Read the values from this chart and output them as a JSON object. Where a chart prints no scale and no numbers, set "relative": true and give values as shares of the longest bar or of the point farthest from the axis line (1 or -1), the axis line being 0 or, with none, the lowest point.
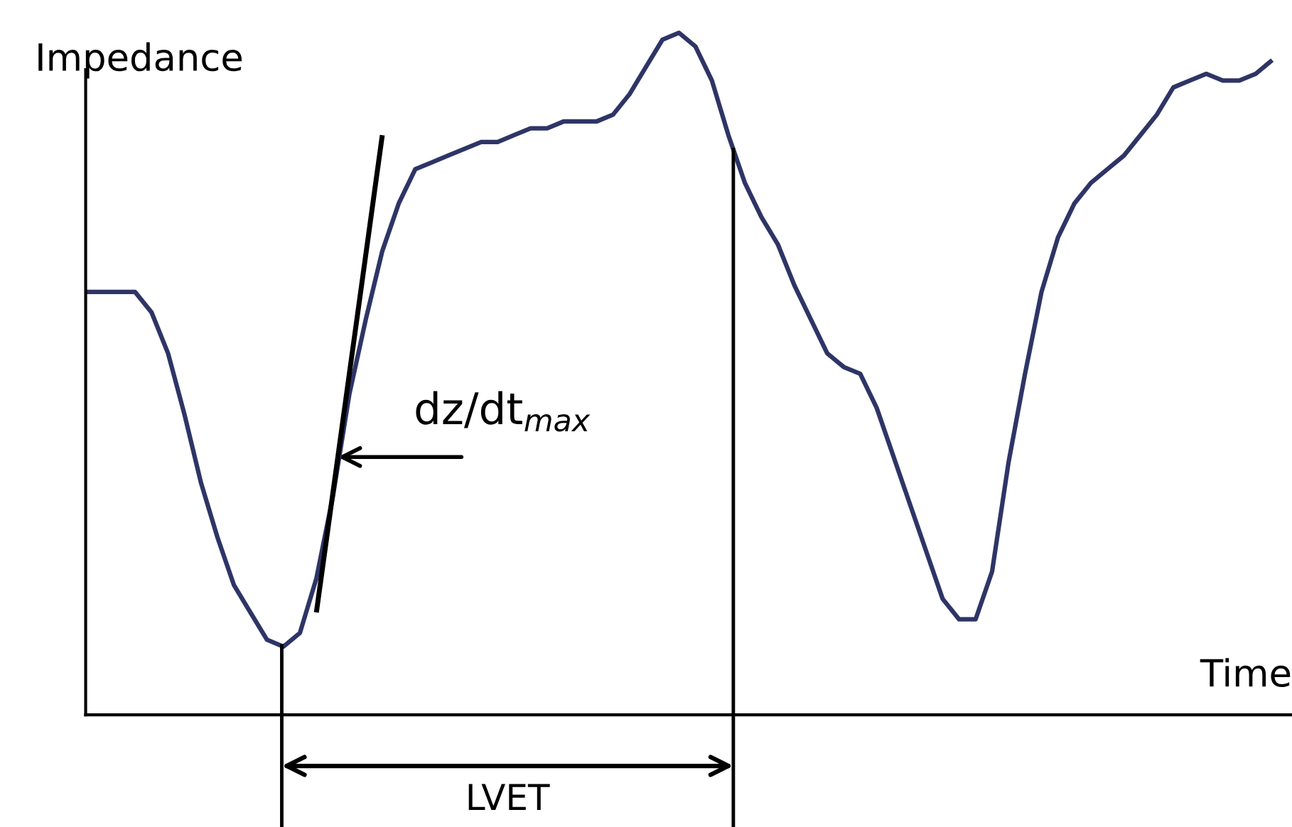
{
  "chart_data": {
    "type": "line",
    "relative": true,
    "ylabel": "Impedance",
    "xlabel": "Time",
    "categories": [
      null,
      null,
      null,
      null,
      null,
      null,
      null,
      null,
      null,
      null,
      null,
      null,
      null,
      null,
      null,
      null,
      null,
      null,
      null,
      null,
      null,
      null,
      null,
      null,
      null,
      null,
      null,
      null,
      null,
      null,
      null,
      null,
      null,
      null,
      null,
      null,
      null,
      null,
      null,
      null,
      null,
      null,
      null,
      null,
      null,
      null,
      null,
      null,
      null,
      null,
      null,
      null,
      null,
      null,
      null,
      null,
      null,
      null,
      null,
      null,
      null,
      null,
      null,
      null,
      null,
      null,
      null,
      null,
      null,
      null,
      null,
      null,
      null
    ],
    "series": [
      {
        "color": "#2e3566",
        "values": [
          0.62,
          0.62,
          0.62,
          0.62,
          0.59,
          0.53,
          0.44,
          0.34,
          0.26,
          0.19,
          0.15,
          0.11,
          0.1,
          0.12,
          0.2,
          0.32,
          0.47,
          0.58,
          0.68,
          0.75,
          0.8,
          0.81,
          0.82,
          0.83,
          0.84,
          0.84,
          0.85,
          0.86,
          0.86,
          0.87,
          0.87,
          0.87,
          0.88,
          0.91,
          0.95,
          0.99,
          1.0,
          0.98,
          0.93,
          0.85,
          0.78,
          0.73,
          0.69,
          0.63,
          0.58,
          0.53,
          0.51,
          0.5,
          0.45,
          0.38,
          0.31,
          0.24,
          0.17,
          0.14,
          0.14,
          0.21,
          0.37,
          0.5,
          0.62,
          0.7,
          0.75,
          0.78,
          0.8,
          0.82,
          0.85,
          0.88,
          0.92,
          0.93,
          0.94,
          0.93,
          0.93,
          0.94,
          0.96
        ]
      },
      {
        "type": "line",
        "color": "#000000",
        "values": [
          null,
          null,
          null,
          null,
          null,
          null,
          null,
          null,
          null,
          null,
          null,
          null,
          null,
          null,
          0.15,
          null,
          null,
          null,
          0.85,
          null,
          null,
          null,
          null,
          null,
          null,
          null,
          null,
          null,
          null,
          null,
          null,
          null,
          null,
          null,
          null,
          null,
          null,
          null,
          null,
          null,
          null,
          null,
          null,
          null,
          null,
          null,
          null,
          null,
          null,
          null,
          null,
          null,
          null,
          null,
          null,
          null,
          null,
          null,
          null,
          null,
          null,
          null,
          null,
          null,
          null,
          null,
          null,
          null,
          null,
          null,
          null,
          null,
          null
        ]
      }
    ],
    "annotations": [
      "dz/dt$_{max}$",
      "LVET"
    ]
  }
}
